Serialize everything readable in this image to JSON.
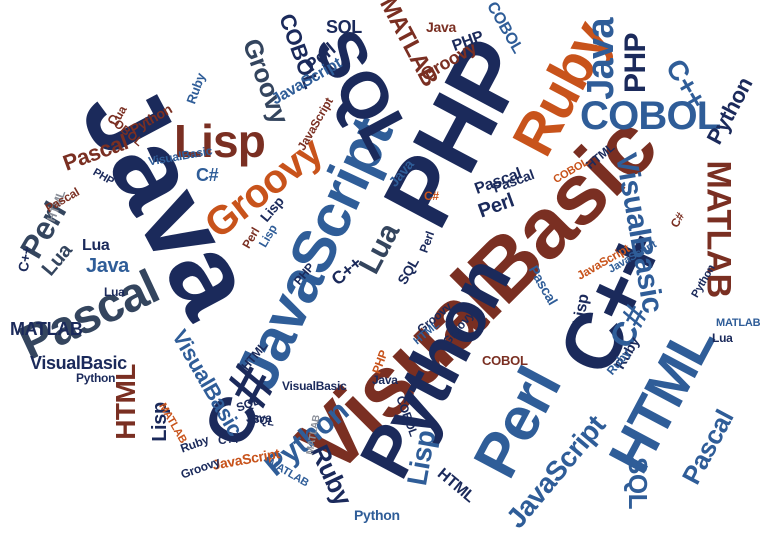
{
  "colors": {
    "navy": "#1b2a5b",
    "blue": "#2f5d98",
    "orange": "#c8531b",
    "brown": "#7a2f22",
    "slate": "#34455e",
    "gray": "#8a8f99"
  },
  "cloud": {
    "java_main": "Java",
    "php_main": "PHP",
    "visualbasic_main": "VisualBasic",
    "visualbasic_center": "VisualBasic",
    "python_center": "Python",
    "javascript_main": "JavaScript",
    "sql_top": "SQL",
    "ruby_top": "Ruby",
    "csharp_main": "C#",
    "cpp_main": "C++",
    "perl_bottom": "Perl",
    "html_right": "HTML",
    "pascal_left": "Pascal",
    "lisp_upper": "Lisp",
    "groovy_upper": "Groovy",
    "cobol_right": "COBOL",
    "matlab_right": "MATLAB",
    "java_right": "Java",
    "php_right": "PHP",
    "cpp_right": "C++",
    "python_right": "Python",
    "visualbasic_right": "VisualBasic",
    "pascal_bottom_right": "Pascal",
    "javascript_bottom": "JavaScript",
    "sql_bottom": "SQL",
    "python_bottom": "Python",
    "ruby_bottom": "Ruby",
    "lisp_bottom": "Lisp",
    "lua_center": "Lua",
    "csharp_right": "C#",
    "perl_left": "Perl",
    "lua_left": "Lua",
    "java_left": "Java",
    "matlab_left": "MATLAB",
    "visualbasic_left": "VisualBasic",
    "html_left": "HTML",
    "visualbasic_lower": "VisualBasic",
    "pascal_upper_left": "Pascal",
    "lisp_lower": "Lisp",
    "matlab_top": "MATLAB",
    "cobol_top": "COBOL",
    "groovy_top_right": "Groovy",
    "perl_top": "Perl",
    "javascript_top": "JavaScript",
    "java_top": "Java",
    "php_top": "PHP",
    "cobol_top2": "COBOL",
    "sql_top_small": "SQL",
    "groovy_top": "Groovy",
    "html_bottom": "HTML",
    "pascal_center": "Pascal",
    "perl_center": "Perl",
    "ruby_small": "Ruby",
    "lua_small": "Lua",
    "cpp_small": "C++",
    "html_small": "HTML",
    "cobol_small": "COBOL",
    "python_small": "Python",
    "matlab_small": "MATLAB",
    "javascript_small": "JavaScript",
    "groovy_small": "Groovy",
    "csharp_small": "C#",
    "php_small": "PHP",
    "java_small": "Java",
    "sql_small": "SQL",
    "ruby_small2": "Ruby",
    "pascal_small": "Pascal",
    "lisp_small": "Lisp",
    "cobol_small2": "COBOL",
    "html_small2": "HTML",
    "python_small2": "Python",
    "perl_small": "Perl",
    "lua_small2": "Lua",
    "cpp_small2": "C++",
    "javascript_small2": "JavaScript",
    "matlab_small2": "MATLAB",
    "visualbasic_small": "VisualBasic",
    "groovy_small2": "Groovy",
    "sql_small2": "SQL",
    "csharp_small2": "C#",
    "php_small2": "PHP",
    "java_small2": "Java",
    "ruby_small3": "Ruby",
    "html_small3": "HTML",
    "lisp_small2": "Lisp",
    "pascal_small2": "Pascal",
    "python_small3": "Python",
    "cobol_small3": "COBOL",
    "matlab_small3": "MATLAB",
    "javascript_small3": "JavaScript",
    "cpp_small3": "C++",
    "lua_small3": "Lua",
    "perl_small2": "Perl",
    "java_small3": "Java",
    "php_small3": "PHP",
    "groovy_small3": "Groovy",
    "sql_small3": "SQL",
    "html_small4": "HTML",
    "ruby_small4": "Ruby",
    "csharp_small3": "C#",
    "visualbasic_small2": "VisualBasic",
    "python_small4": "Python",
    "pascal_small3": "Pascal",
    "lisp_small3": "Lisp",
    "cobol_small4": "COBOL",
    "matlab_small4": "MATLAB",
    "javascript_small4": "JavaScript",
    "lua_small4": "Lua"
  }
}
